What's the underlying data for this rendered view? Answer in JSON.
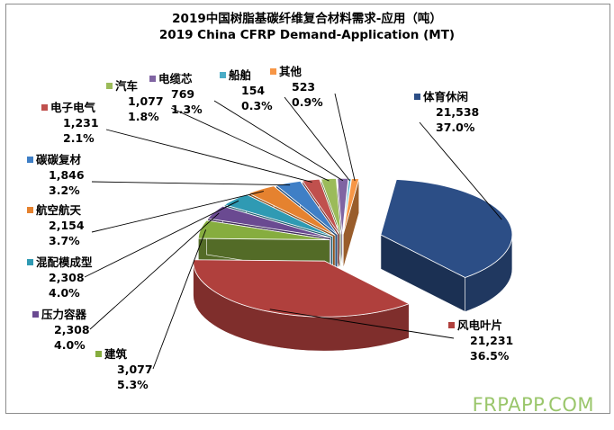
{
  "chart_data": {
    "type": "pie",
    "title": "2019中国树脂基碳纤维复合材料需求-应用（吨）",
    "subtitle": "2019 China CFRP Demand-Application (MT)",
    "unit": "MT",
    "slices": [
      {
        "label": "体育休闲",
        "value": 21538,
        "value_text": "21,538",
        "percent_text": "37.0%",
        "color": "#2c4e86"
      },
      {
        "label": "风电叶片",
        "value": 21231,
        "value_text": "21,231",
        "percent_text": "36.5%",
        "color": "#b0403d"
      },
      {
        "label": "建筑",
        "value": 3077,
        "value_text": "3,077",
        "percent_text": "5.3%",
        "color": "#86ad3f"
      },
      {
        "label": "压力容器",
        "value": 2308,
        "value_text": "2,308",
        "percent_text": "4.0%",
        "color": "#6a4a91"
      },
      {
        "label": "混配模成型",
        "value": 2308,
        "value_text": "2,308",
        "percent_text": "4.0%",
        "color": "#2f9ab3"
      },
      {
        "label": "航空航天",
        "value": 2154,
        "value_text": "2,154",
        "percent_text": "3.7%",
        "color": "#e5822f"
      },
      {
        "label": "碳碳复材",
        "value": 1846,
        "value_text": "1,846",
        "percent_text": "3.2%",
        "color": "#3f7fc6"
      },
      {
        "label": "电子电气",
        "value": 1231,
        "value_text": "1,231",
        "percent_text": "2.1%",
        "color": "#c0504d"
      },
      {
        "label": "汽车",
        "value": 1077,
        "value_text": "1,077",
        "percent_text": "1.8%",
        "color": "#9bbb59"
      },
      {
        "label": "电缆芯",
        "value": 769,
        "value_text": "769",
        "percent_text": "1.3%",
        "color": "#8064a2"
      },
      {
        "label": "船舶",
        "value": 154,
        "value_text": "154",
        "percent_text": "0.3%",
        "color": "#4bacc6"
      },
      {
        "label": "其他",
        "value": 523,
        "value_text": "523",
        "percent_text": "0.9%",
        "color": "#f79646"
      }
    ],
    "legend_placement": "labels-with-leader-lines"
  },
  "watermark": "FRPAPP.COM"
}
